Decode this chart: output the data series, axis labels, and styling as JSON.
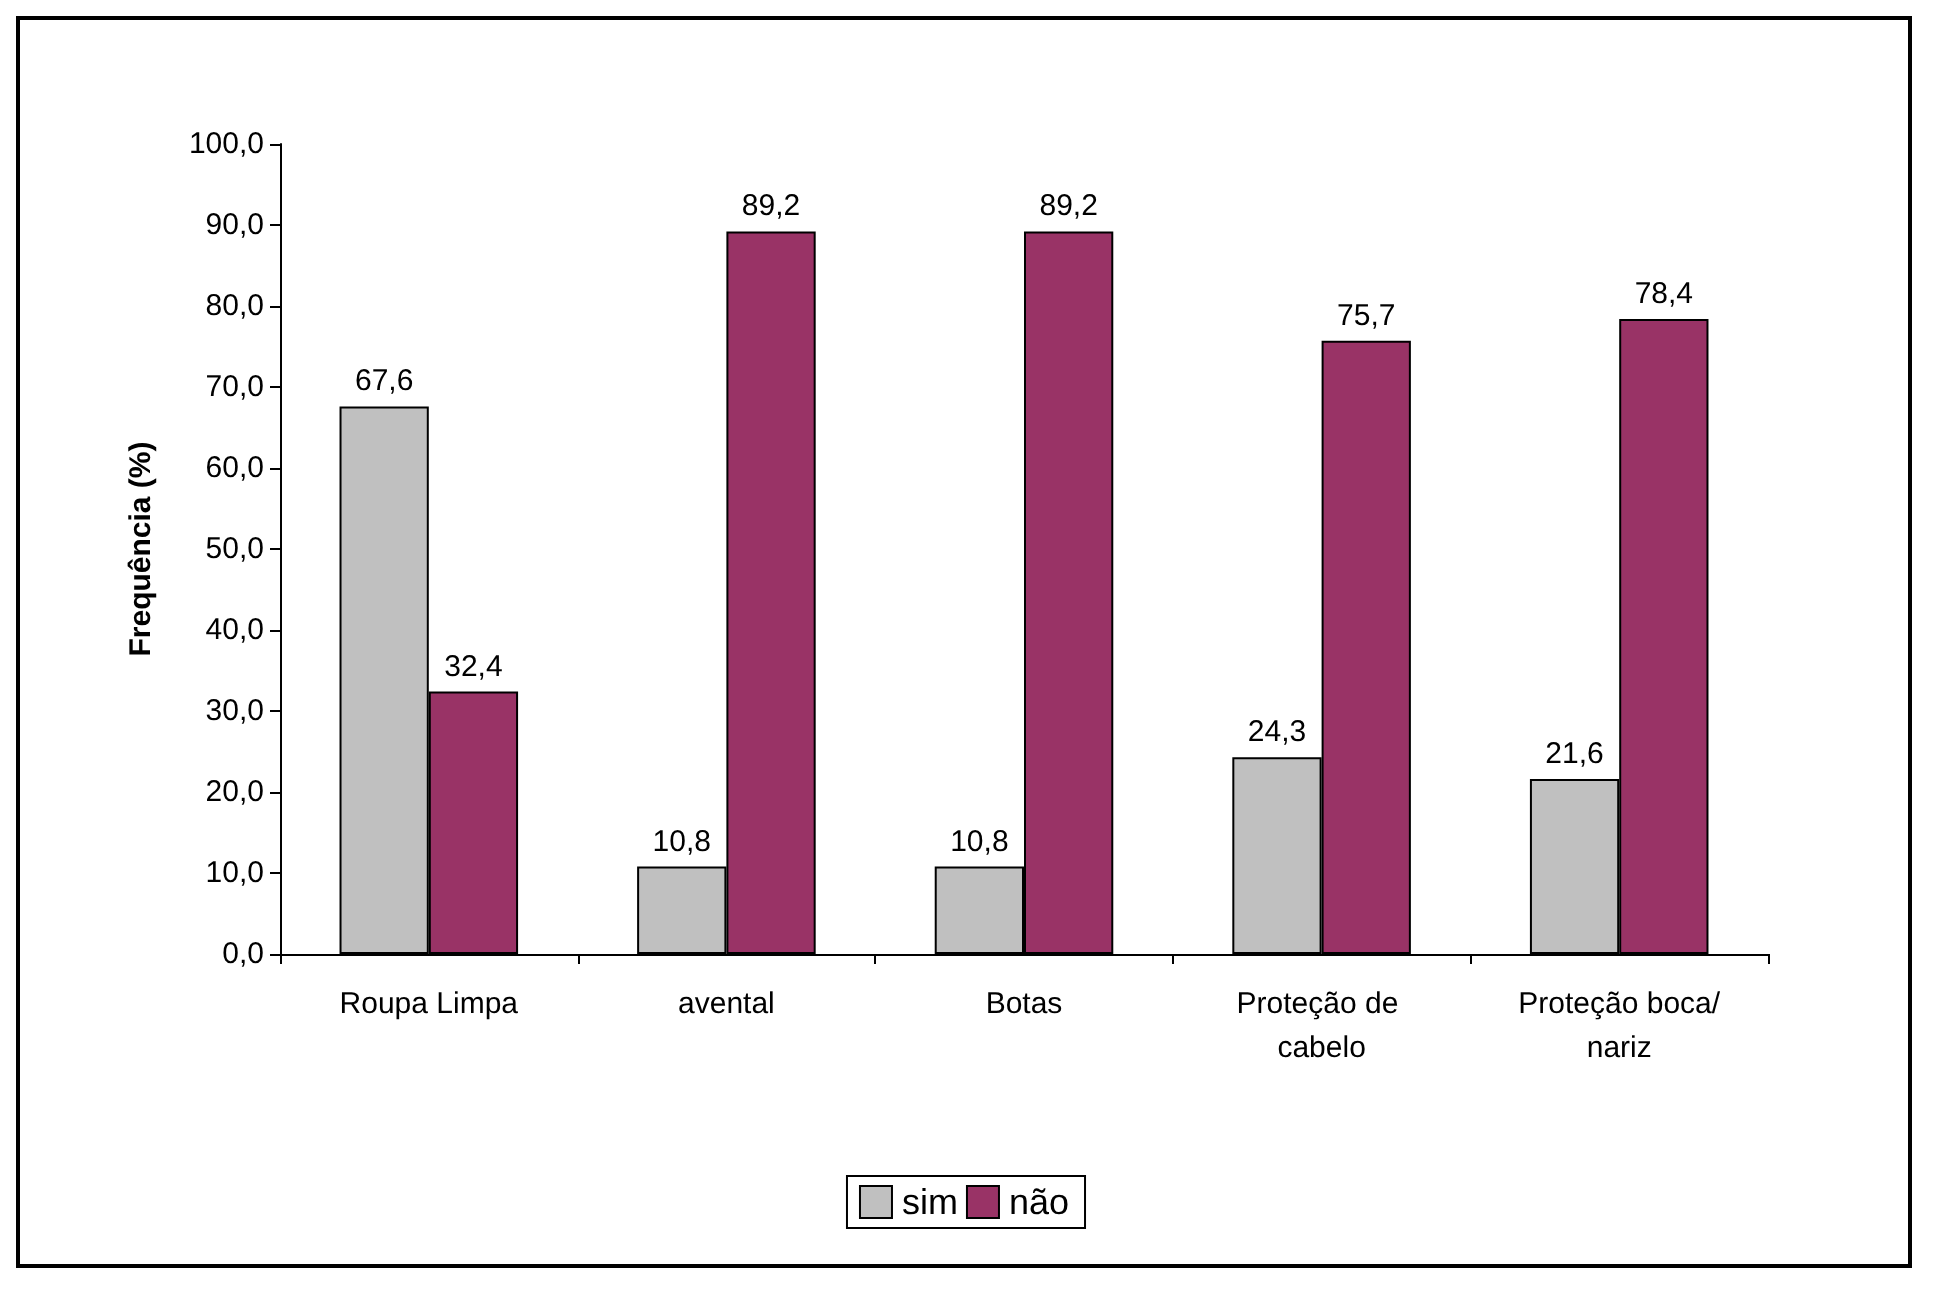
{
  "chart_data": {
    "type": "bar",
    "ylabel": "Frequência (%)",
    "categories": [
      "Roupa Limpa",
      "avental",
      "Botas",
      "Proteção de cabelo",
      "Proteção boca/nariz"
    ],
    "series": [
      {
        "name": "sim",
        "color": "#c0c0c0",
        "values": [
          67.6,
          10.8,
          10.8,
          24.3,
          21.6
        ],
        "value_labels": [
          "67,6",
          "10,8",
          "10,8",
          "24,3",
          "21,6"
        ]
      },
      {
        "name": "não",
        "color": "#993366",
        "values": [
          32.4,
          89.2,
          89.2,
          75.7,
          78.4
        ],
        "value_labels": [
          "32,4",
          "89,2",
          "89,2",
          "75,7",
          "78,4"
        ]
      }
    ],
    "ylim": [
      0,
      100
    ],
    "yticks": [
      {
        "value": 0,
        "label": "0,0"
      },
      {
        "value": 10,
        "label": "10,0"
      },
      {
        "value": 20,
        "label": "20,0"
      },
      {
        "value": 30,
        "label": "30,0"
      },
      {
        "value": 40,
        "label": "40,0"
      },
      {
        "value": 50,
        "label": "50,0"
      },
      {
        "value": 60,
        "label": "60,0"
      },
      {
        "value": 70,
        "label": "70,0"
      },
      {
        "value": 80,
        "label": "80,0"
      },
      {
        "value": 90,
        "label": "90,0"
      },
      {
        "value": 100,
        "label": "100,0"
      }
    ],
    "grid": false,
    "legend": "bottom"
  }
}
